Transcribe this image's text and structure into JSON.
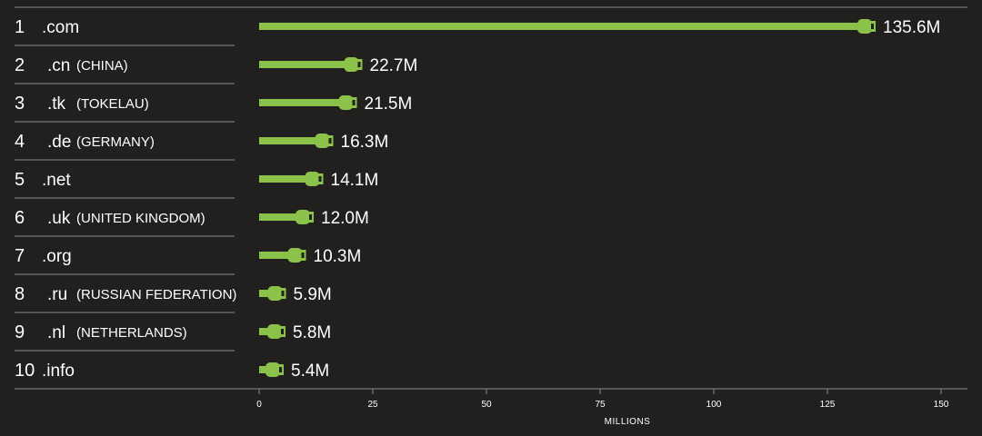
{
  "colors": {
    "background": "#221f1f",
    "bar": "#8bc34a",
    "bar_dark": "#221f1f",
    "rule": "#8a8a8a",
    "text": "#ffffff"
  },
  "chart_data": {
    "type": "bar",
    "orientation": "horizontal",
    "xlabel": "MILLIONS",
    "xlim": [
      0,
      150
    ],
    "xticks": [
      0,
      25,
      50,
      75,
      100,
      125,
      150
    ],
    "grid": false,
    "rows": [
      {
        "rank": "1",
        "tld": ".com",
        "country": "",
        "value": 135.6,
        "value_label": "135.6M"
      },
      {
        "rank": "2",
        "tld": ".cn",
        "country": "(CHINA)",
        "value": 22.7,
        "value_label": "22.7M"
      },
      {
        "rank": "3",
        "tld": ".tk",
        "country": "(TOKELAU)",
        "value": 21.5,
        "value_label": "21.5M"
      },
      {
        "rank": "4",
        "tld": ".de",
        "country": "(GERMANY)",
        "value": 16.3,
        "value_label": "16.3M"
      },
      {
        "rank": "5",
        "tld": ".net",
        "country": "",
        "value": 14.1,
        "value_label": "14.1M"
      },
      {
        "rank": "6",
        "tld": ".uk",
        "country": "(UNITED KINGDOM)",
        "value": 12.0,
        "value_label": "12.0M"
      },
      {
        "rank": "7",
        "tld": ".org",
        "country": "",
        "value": 10.3,
        "value_label": "10.3M"
      },
      {
        "rank": "8",
        "tld": ".ru",
        "country": "(RUSSIAN FEDERATION)",
        "value": 5.9,
        "value_label": "5.9M"
      },
      {
        "rank": "9",
        "tld": ".nl",
        "country": "(NETHERLANDS)",
        "value": 5.8,
        "value_label": "5.8M"
      },
      {
        "rank": "10",
        "tld": ".info",
        "country": "",
        "value": 5.4,
        "value_label": "5.4M"
      }
    ]
  }
}
